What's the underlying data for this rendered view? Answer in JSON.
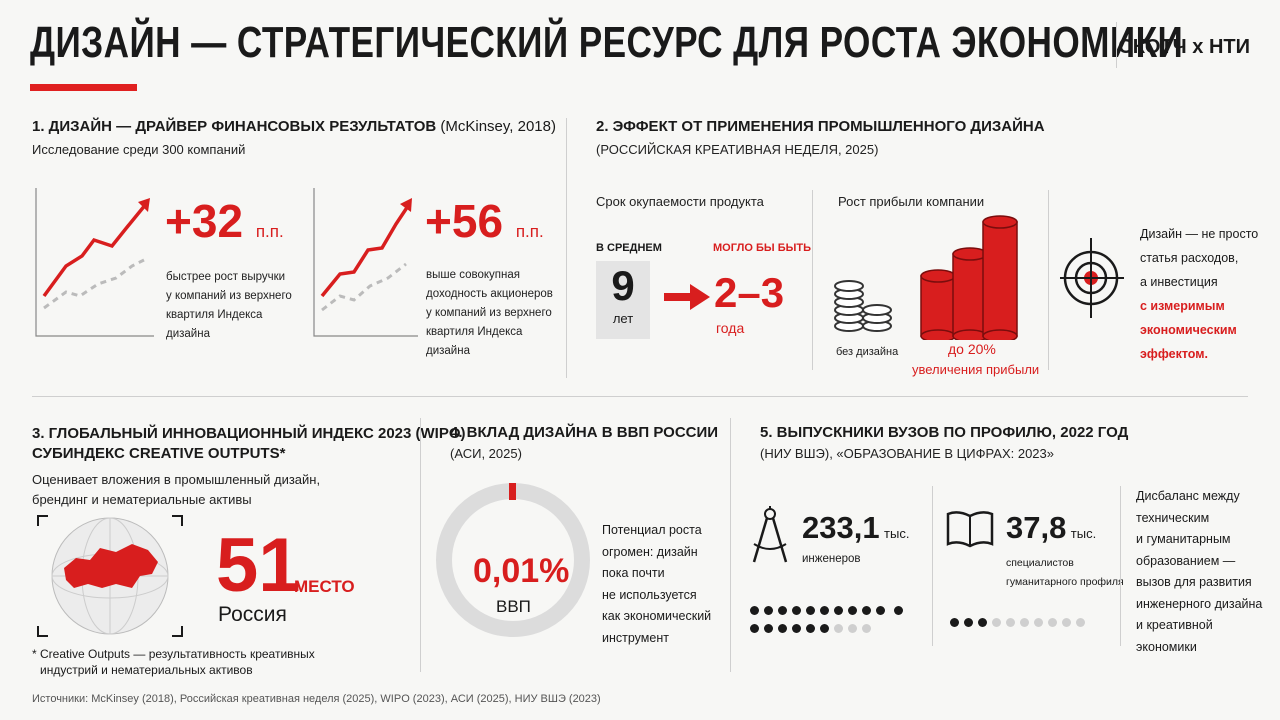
{
  "header": {
    "title": "ДИЗАЙН — СТРАТЕГИЧЕСКИЙ РЕСУРС ДЛЯ РОСТА ЭКОНОМИКИ",
    "brand": "СКОТЧ x НТИ"
  },
  "colors": {
    "accent": "#d81e1e",
    "text": "#1a1a1a",
    "muted": "#cfcfcf"
  },
  "s1": {
    "title": "1. ДИЗАЙН — ДРАЙВЕР ФИНАНСОВЫХ РЕЗУЛЬТАТОВ",
    "source": "(McKinsey, 2018)",
    "subtitle": "Исследование среди 300 компаний",
    "stat1": {
      "value": "+32",
      "unit": "п.п.",
      "desc": [
        "быстрее рост выручки",
        "у компаний из верхнего",
        "квартиля Индекса дизайна"
      ]
    },
    "stat2": {
      "value": "+56",
      "unit": "п.п.",
      "desc": [
        "выше совокупная",
        "доходность акционеров",
        "у компаний из верхнего",
        "квартиля Индекса дизайна"
      ]
    }
  },
  "s2": {
    "title": "2. ЭФФЕКТ ОТ ПРИМЕНЕНИЯ ПРОМЫШЛЕННОГО ДИЗАЙНА",
    "subtitle": "(РОССИЙСКАЯ КРЕАТИВНАЯ НЕДЕЛЯ, 2025)",
    "payback_label": "Срок окупаемости продукта",
    "avg_label": "В СРЕДНЕМ",
    "avg_value": "9",
    "avg_unit": "лет",
    "could_label": "МОГЛО БЫ БЫТЬ",
    "could_value": "2–3",
    "could_unit": "года",
    "profit_label": "Рост прибыли компании",
    "no_design_label": "без дизайна",
    "profit_value": "до 20%",
    "profit_desc": "увеличения прибыли",
    "note_lines": [
      "Дизайн — не просто",
      "статья расходов,",
      "а инвестиция"
    ],
    "note_red_lines": [
      "с измеримым",
      "экономическим",
      "эффектом."
    ]
  },
  "s3": {
    "title_lines": [
      "3. ГЛОБАЛЬНЫЙ ИННОВАЦИОННЫЙ ИНДЕКС 2023 (WIPO)",
      "СУБИНДЕКС CREATIVE OUTPUTS*"
    ],
    "desc_lines": [
      "Оценивает вложения в промышленный дизайн,",
      "брендинг и нематериальные активы"
    ],
    "rank": "51",
    "rank_unit": "МЕСТО",
    "country": "Россия",
    "footnote_lines": [
      "* Creative Outputs — результативность креативных",
      "индустрий и нематериальных активов"
    ]
  },
  "s4": {
    "title": "4. ВКЛАД ДИЗАЙНА В ВВП РОССИИ",
    "subtitle": "(АСИ, 2025)",
    "value": "0,01%",
    "value_label": "ВВП",
    "share_fraction": 0.0001,
    "note_lines": [
      "Потенциал роста",
      "огромен: дизайн",
      "пока почти",
      "не используется",
      "как экономический",
      "инструмент"
    ]
  },
  "s5": {
    "title": "5. ВЫПУСКНИКИ ВУЗОВ ПО ПРОФИЛЮ, 2022 ГОД",
    "subtitle": "(НИУ ВШЭ), «ОБРАЗОВАНИЕ В ЦИФРАХ: 2023»",
    "eng_value": "233,1",
    "eng_unit": "тыс.",
    "eng_label": "инженеров",
    "hum_value": "37,8",
    "hum_unit": "тыс.",
    "hum_label_lines": [
      "специалистов",
      "гуманитарного профиля"
    ],
    "note_lines": [
      "Дисбаланс между",
      "техническим",
      "и гуманитарным",
      "образованием —",
      "вызов для развития",
      "инженерного дизайна",
      "и креативной",
      "экономики"
    ]
  },
  "footer": "Источники: McKinsey (2018), Российская креативная неделя (2025), WIPO (2023), АСИ (2025), НИУ ВШЭ (2023)"
}
